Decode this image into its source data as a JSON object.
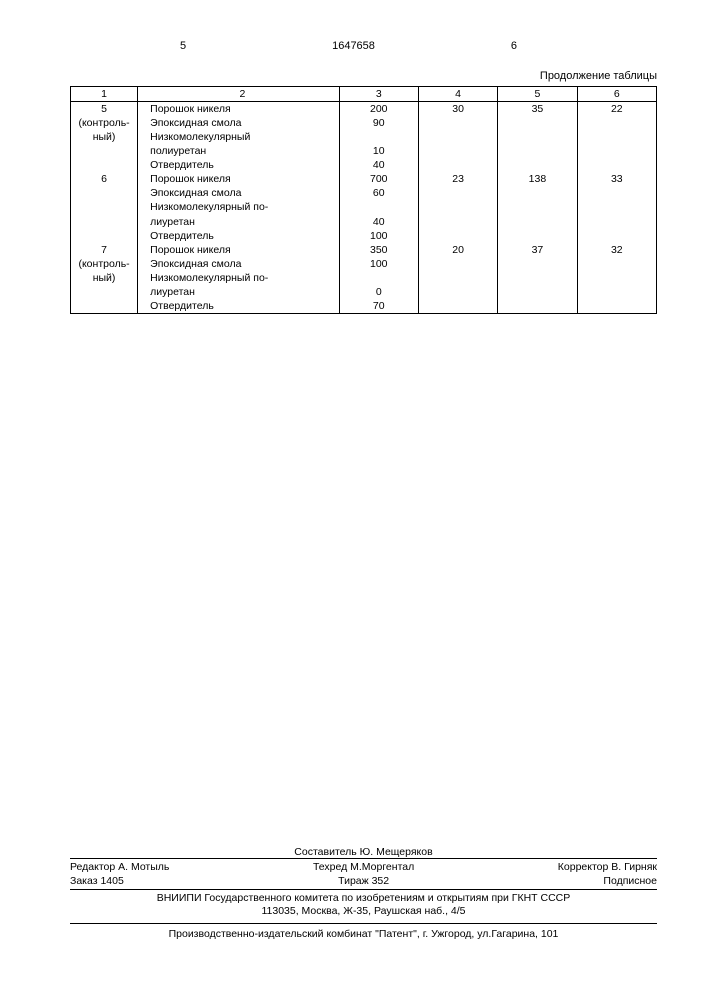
{
  "header": {
    "left_num": "5",
    "doc_num": "1647658",
    "right_num": "6",
    "continuation": "Продолжение таблицы"
  },
  "table": {
    "headers": [
      "1",
      "2",
      "3",
      "4",
      "5",
      "6"
    ],
    "groups": [
      {
        "label": "5",
        "sublabel": "(контрольный)",
        "rows": [
          {
            "component": "Порошок никеля",
            "v3": "200",
            "v4": "30",
            "v5": "35",
            "v6": "22"
          },
          {
            "component": "Эпоксидная смола",
            "v3": "90",
            "v4": "",
            "v5": "",
            "v6": ""
          },
          {
            "component": "Низкомолекулярный",
            "v3": "",
            "v4": "",
            "v5": "",
            "v6": ""
          },
          {
            "component": "полиуретан",
            "v3": "10",
            "v4": "",
            "v5": "",
            "v6": ""
          },
          {
            "component": "Отвердитель",
            "v3": "40",
            "v4": "",
            "v5": "",
            "v6": ""
          }
        ]
      },
      {
        "label": "6",
        "sublabel": "",
        "rows": [
          {
            "component": "Порошок никеля",
            "v3": "700",
            "v4": "23",
            "v5": "138",
            "v6": "33"
          },
          {
            "component": "Эпоксидная смола",
            "v3": "60",
            "v4": "",
            "v5": "",
            "v6": ""
          },
          {
            "component": "Низкомолекулярный по-",
            "v3": "",
            "v4": "",
            "v5": "",
            "v6": ""
          },
          {
            "component": "лиуретан",
            "v3": "40",
            "v4": "",
            "v5": "",
            "v6": ""
          },
          {
            "component": "Отвердитель",
            "v3": "100",
            "v4": "",
            "v5": "",
            "v6": ""
          }
        ]
      },
      {
        "label": "7",
        "sublabel": "(контрольный)",
        "rows": [
          {
            "component": "Порошок никеля",
            "v3": "350",
            "v4": "20",
            "v5": "37",
            "v6": "32"
          },
          {
            "component": "Эпоксидная смола",
            "v3": "100",
            "v4": "",
            "v5": "",
            "v6": ""
          },
          {
            "component": "Низкомолекулярный по-",
            "v3": "",
            "v4": "",
            "v5": "",
            "v6": ""
          },
          {
            "component": "лиуретан",
            "v3": "0",
            "v4": "",
            "v5": "",
            "v6": ""
          },
          {
            "component": "Отвердитель",
            "v3": "70",
            "v4": "",
            "v5": "",
            "v6": ""
          }
        ]
      }
    ]
  },
  "footer": {
    "composer": "Составитель Ю. Мещеряков",
    "editor": "Редактор А. Мотыль",
    "tehred": "Техред М.Моргентал",
    "corrector": "Корректор В. Гирняк",
    "order": "Заказ 1405",
    "tirazh": "Тираж 352",
    "signed": "Подписное",
    "vniip1": "ВНИИПИ Государственного комитета по изобретениям и открытиям при ГКНТ СССР",
    "vniip2": "113035, Москва, Ж-35, Раушская наб., 4/5",
    "patent": "Производственно-издательский комбинат \"Патент\", г. Ужгород, ул.Гагарина, 101"
  }
}
